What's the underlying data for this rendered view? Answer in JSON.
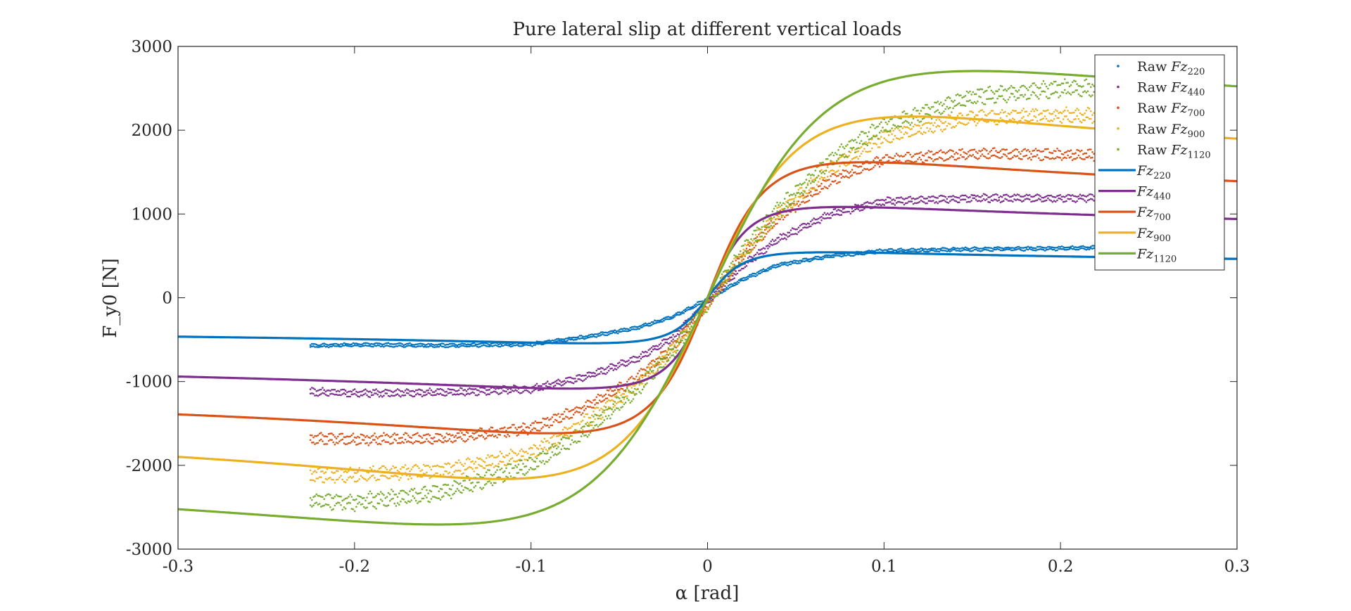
{
  "chart_data": {
    "type": "line",
    "title": "Pure lateral slip at different vertical loads",
    "xlabel": "α [rad]",
    "ylabel": "F_y0 [N]",
    "xlim": [
      -0.3,
      0.3
    ],
    "ylim": [
      -3000,
      3000
    ],
    "x_ticks": [
      -0.3,
      -0.2,
      -0.1,
      0,
      0.1,
      0.2,
      0.3
    ],
    "x_tick_labels": [
      "-0.3",
      "-0.2",
      "-0.1",
      "0",
      "0.1",
      "0.2",
      "0.3"
    ],
    "y_ticks": [
      -3000,
      -2000,
      -1000,
      0,
      1000,
      2000,
      3000
    ],
    "y_tick_labels": [
      "-3000",
      "-2000",
      "-1000",
      "0",
      "1000",
      "2000",
      "3000"
    ],
    "grid": false,
    "legend_position": "top-right",
    "raw_data_x_range": [
      -0.225,
      0.225
    ],
    "series": [
      {
        "name": "Raw Fz220",
        "kind": "scatter",
        "color": "#0072BD",
        "x": [
          -0.225,
          -0.2,
          -0.15,
          -0.1,
          -0.07,
          -0.04,
          -0.02,
          0,
          0.02,
          0.04,
          0.07,
          0.1,
          0.15,
          0.2,
          0.225
        ],
        "y": [
          -575,
          -560,
          -570,
          -555,
          -470,
          -360,
          -230,
          -20,
          220,
          390,
          500,
          560,
          580,
          590,
          600
        ]
      },
      {
        "name": "Raw Fz440",
        "kind": "scatter",
        "color": "#7E2F8E",
        "x": [
          -0.225,
          -0.2,
          -0.15,
          -0.1,
          -0.07,
          -0.04,
          -0.02,
          0,
          0.02,
          0.04,
          0.07,
          0.1,
          0.15,
          0.2,
          0.225
        ],
        "y": [
          -1120,
          -1140,
          -1130,
          -1090,
          -950,
          -730,
          -480,
          -50,
          380,
          700,
          1000,
          1150,
          1190,
          1190,
          1190
        ]
      },
      {
        "name": "Raw Fz700",
        "kind": "scatter",
        "color": "#D95319",
        "x": [
          -0.225,
          -0.2,
          -0.15,
          -0.1,
          -0.07,
          -0.04,
          -0.02,
          0,
          0.02,
          0.04,
          0.07,
          0.1,
          0.15,
          0.2,
          0.225
        ],
        "y": [
          -1680,
          -1690,
          -1680,
          -1560,
          -1320,
          -960,
          -600,
          -80,
          500,
          950,
          1400,
          1650,
          1720,
          1710,
          1700
        ]
      },
      {
        "name": "Raw Fz900",
        "kind": "scatter",
        "color": "#EDB120",
        "x": [
          -0.225,
          -0.2,
          -0.15,
          -0.1,
          -0.07,
          -0.04,
          -0.02,
          0,
          0.02,
          0.04,
          0.07,
          0.1,
          0.15,
          0.2,
          0.225
        ],
        "y": [
          -2120,
          -2110,
          -2060,
          -1860,
          -1500,
          -1050,
          -620,
          -60,
          520,
          1000,
          1550,
          1920,
          2150,
          2180,
          2170
        ]
      },
      {
        "name": "Raw Fz1120",
        "kind": "scatter",
        "color": "#77AC30",
        "x": [
          -0.225,
          -0.2,
          -0.15,
          -0.1,
          -0.07,
          -0.04,
          -0.02,
          0,
          0.02,
          0.04,
          0.07,
          0.1,
          0.15,
          0.2,
          0.225
        ],
        "y": [
          -2420,
          -2440,
          -2320,
          -2000,
          -1600,
          -1100,
          -650,
          -60,
          550,
          1050,
          1650,
          2050,
          2400,
          2500,
          2500
        ]
      },
      {
        "name": "Fz220",
        "kind": "line",
        "color": "#0072BD",
        "D": 550,
        "B": 35,
        "C": 1.45,
        "E": 0.5,
        "tail": 0.055
      },
      {
        "name": "Fz440",
        "kind": "line",
        "color": "#7E2F8E",
        "D": 1100,
        "B": 31,
        "C": 1.45,
        "E": 0.5,
        "tail": 0.055
      },
      {
        "name": "Fz700",
        "kind": "line",
        "color": "#D95319",
        "D": 1640,
        "B": 22,
        "C": 1.5,
        "E": 0.35,
        "tail": 0.045
      },
      {
        "name": "Fz900",
        "kind": "line",
        "color": "#EDB120",
        "D": 2180,
        "B": 14,
        "C": 1.55,
        "E": 0.1,
        "tail": 0.02
      },
      {
        "name": "Fz1120",
        "kind": "line",
        "color": "#77AC30",
        "D": 2720,
        "B": 11,
        "C": 1.5,
        "E": -0.05,
        "tail": 0.01
      }
    ]
  },
  "legend": {
    "items": [
      {
        "kind": "dot",
        "color": "#0072BD",
        "prefix": "Raw ",
        "main": "Fz",
        "sub": "220"
      },
      {
        "kind": "dot",
        "color": "#7E2F8E",
        "prefix": "Raw ",
        "main": "Fz",
        "sub": "440"
      },
      {
        "kind": "dot",
        "color": "#D95319",
        "prefix": "Raw ",
        "main": "Fz",
        "sub": "700"
      },
      {
        "kind": "dot",
        "color": "#EDB120",
        "prefix": "Raw ",
        "main": "Fz",
        "sub": "900"
      },
      {
        "kind": "dot",
        "color": "#77AC30",
        "prefix": "Raw ",
        "main": "Fz",
        "sub": "1120"
      },
      {
        "kind": "line",
        "color": "#0072BD",
        "prefix": "",
        "main": "Fz",
        "sub": "220"
      },
      {
        "kind": "line",
        "color": "#7E2F8E",
        "prefix": "",
        "main": "Fz",
        "sub": "440"
      },
      {
        "kind": "line",
        "color": "#D95319",
        "prefix": "",
        "main": "Fz",
        "sub": "700"
      },
      {
        "kind": "line",
        "color": "#EDB120",
        "prefix": "",
        "main": "Fz",
        "sub": "900"
      },
      {
        "kind": "line",
        "color": "#77AC30",
        "prefix": "",
        "main": "Fz",
        "sub": "1120"
      }
    ]
  }
}
